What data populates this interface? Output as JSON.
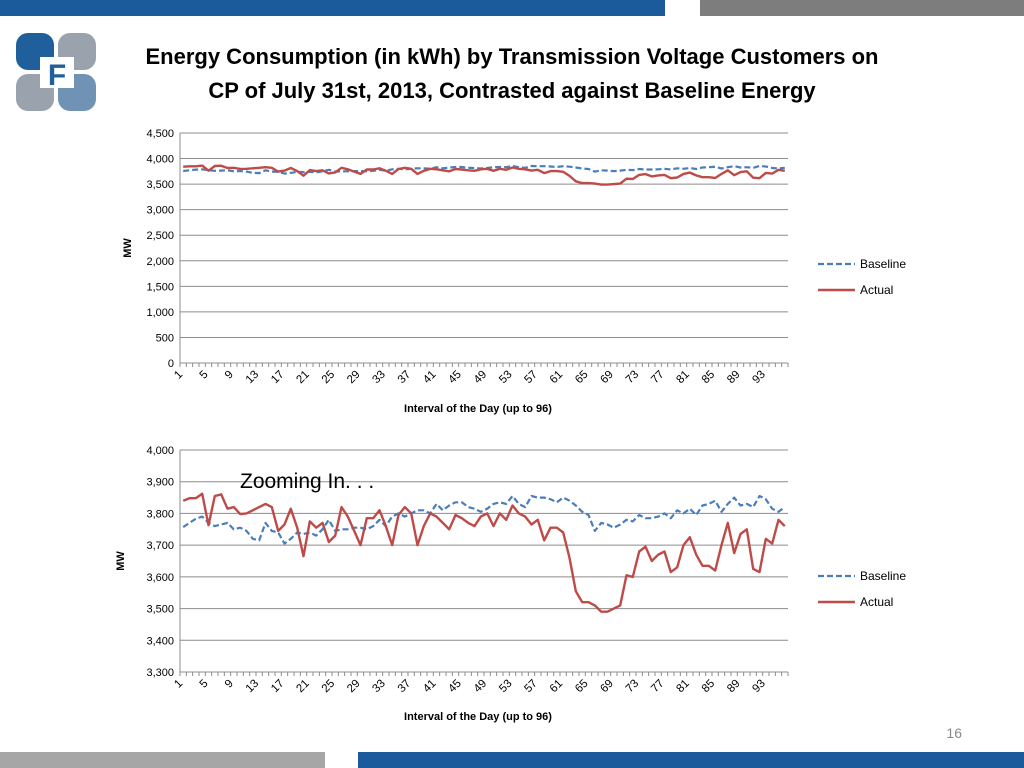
{
  "slide": {
    "title_line1": "Energy Consumption (in kWh) by Transmission Voltage Customers on",
    "title_line2": "CP of July 31st, 2013, Contrasted against Baseline Energy",
    "slide_number": "16",
    "logo_letter": "F"
  },
  "colors": {
    "baseline": "#4a7ebb",
    "actual": "#be4b48",
    "header_blue": "#1b5b9b",
    "header_gray": "#7d7d7d",
    "footer_gray": "#a6a6a6",
    "logo_blue": "#1f5f9b",
    "logo_gray": "#9aa3ad"
  },
  "chart_data": [
    {
      "type": "line",
      "title": "",
      "xlabel": "Interval of the Day (up to 96)",
      "ylabel": "MW",
      "ylim": [
        0,
        4500
      ],
      "yticks": [
        "0",
        "500",
        "1,000",
        "1,500",
        "2,000",
        "2,500",
        "3,000",
        "3,500",
        "4,000",
        "4,500"
      ],
      "ytick_values": [
        0,
        500,
        1000,
        1500,
        2000,
        2500,
        3000,
        3500,
        4000,
        4500
      ],
      "xticks": [
        "1",
        "5",
        "9",
        "13",
        "17",
        "21",
        "25",
        "29",
        "33",
        "37",
        "41",
        "45",
        "49",
        "53",
        "57",
        "61",
        "65",
        "69",
        "73",
        "77",
        "81",
        "85",
        "89",
        "93"
      ],
      "grid": true,
      "legend": "right",
      "x_first": 1,
      "x_last": 96,
      "series": [
        {
          "name": "Baseline",
          "style": "dashed",
          "values": [
            3757,
            3770,
            3783,
            3790,
            3770,
            3760,
            3765,
            3770,
            3750,
            3755,
            3745,
            3720,
            3715,
            3770,
            3745,
            3740,
            3705,
            3720,
            3740,
            3735,
            3740,
            3730,
            3750,
            3780,
            3745,
            3750,
            3750,
            3755,
            3755,
            3750,
            3760,
            3780,
            3760,
            3790,
            3800,
            3790,
            3800,
            3810,
            3810,
            3800,
            3830,
            3810,
            3825,
            3835,
            3835,
            3820,
            3815,
            3805,
            3815,
            3830,
            3835,
            3830,
            3855,
            3830,
            3820,
            3855,
            3850,
            3850,
            3845,
            3835,
            3850,
            3840,
            3825,
            3805,
            3795,
            3745,
            3770,
            3765,
            3755,
            3765,
            3780,
            3775,
            3795,
            3785,
            3785,
            3790,
            3800,
            3785,
            3810,
            3800,
            3815,
            3795,
            3825,
            3830,
            3840,
            3805,
            3830,
            3850,
            3825,
            3830,
            3820,
            3855,
            3845,
            3815,
            3805,
            3820
          ]
        },
        {
          "name": "Actual",
          "style": "solid",
          "values": [
            3840,
            3848,
            3848,
            3862,
            3763,
            3855,
            3860,
            3815,
            3820,
            3798,
            3800,
            3810,
            3820,
            3830,
            3820,
            3745,
            3765,
            3815,
            3755,
            3665,
            3775,
            3755,
            3770,
            3710,
            3730,
            3820,
            3790,
            3745,
            3700,
            3785,
            3785,
            3810,
            3760,
            3700,
            3795,
            3820,
            3800,
            3700,
            3760,
            3800,
            3790,
            3770,
            3750,
            3795,
            3785,
            3770,
            3760,
            3790,
            3800,
            3760,
            3800,
            3780,
            3825,
            3800,
            3790,
            3765,
            3780,
            3715,
            3755,
            3755,
            3740,
            3660,
            3555,
            3520,
            3520,
            3510,
            3490,
            3490,
            3500,
            3510,
            3605,
            3600,
            3680,
            3695,
            3650,
            3670,
            3680,
            3615,
            3630,
            3700,
            3725,
            3670,
            3635,
            3635,
            3620,
            3700,
            3770,
            3675,
            3735,
            3750,
            3625,
            3615,
            3720,
            3705,
            3780,
            3760
          ]
        }
      ]
    },
    {
      "type": "line",
      "title": "",
      "annotation": "Zooming In. . .",
      "xlabel": "Interval of the Day (up to 96)",
      "ylabel": "MW",
      "ylim": [
        3300,
        4000
      ],
      "yticks": [
        "3,300",
        "3,400",
        "3,500",
        "3,600",
        "3,700",
        "3,800",
        "3,900",
        "4,000"
      ],
      "ytick_values": [
        3300,
        3400,
        3500,
        3600,
        3700,
        3800,
        3900,
        4000
      ],
      "xticks": [
        "1",
        "5",
        "9",
        "13",
        "17",
        "21",
        "25",
        "29",
        "33",
        "37",
        "41",
        "45",
        "49",
        "53",
        "57",
        "61",
        "65",
        "69",
        "73",
        "77",
        "81",
        "85",
        "89",
        "93"
      ],
      "grid": true,
      "legend": "right",
      "x_first": 1,
      "x_last": 96,
      "series": [
        {
          "name": "Baseline",
          "style": "dashed",
          "values": [
            3757,
            3770,
            3783,
            3790,
            3770,
            3760,
            3765,
            3770,
            3750,
            3755,
            3745,
            3720,
            3715,
            3770,
            3745,
            3740,
            3705,
            3720,
            3740,
            3735,
            3740,
            3730,
            3750,
            3780,
            3745,
            3750,
            3750,
            3755,
            3755,
            3750,
            3760,
            3780,
            3760,
            3790,
            3800,
            3790,
            3800,
            3810,
            3810,
            3800,
            3830,
            3810,
            3825,
            3835,
            3835,
            3820,
            3815,
            3805,
            3815,
            3830,
            3835,
            3830,
            3855,
            3830,
            3820,
            3855,
            3850,
            3850,
            3845,
            3835,
            3850,
            3840,
            3825,
            3805,
            3795,
            3745,
            3770,
            3765,
            3755,
            3765,
            3780,
            3775,
            3795,
            3785,
            3785,
            3790,
            3800,
            3785,
            3810,
            3800,
            3815,
            3795,
            3825,
            3830,
            3840,
            3805,
            3830,
            3850,
            3825,
            3830,
            3820,
            3855,
            3845,
            3815,
            3805,
            3820
          ]
        },
        {
          "name": "Actual",
          "style": "solid",
          "values": [
            3840,
            3848,
            3848,
            3862,
            3763,
            3855,
            3860,
            3815,
            3820,
            3798,
            3800,
            3810,
            3820,
            3830,
            3820,
            3745,
            3765,
            3815,
            3755,
            3665,
            3775,
            3755,
            3770,
            3710,
            3730,
            3820,
            3790,
            3745,
            3700,
            3785,
            3785,
            3810,
            3760,
            3700,
            3795,
            3820,
            3800,
            3700,
            3760,
            3800,
            3790,
            3770,
            3750,
            3795,
            3785,
            3770,
            3760,
            3790,
            3800,
            3760,
            3800,
            3780,
            3825,
            3800,
            3790,
            3765,
            3780,
            3715,
            3755,
            3755,
            3740,
            3660,
            3555,
            3520,
            3520,
            3510,
            3490,
            3490,
            3500,
            3510,
            3605,
            3600,
            3680,
            3695,
            3650,
            3670,
            3680,
            3615,
            3630,
            3700,
            3725,
            3670,
            3635,
            3635,
            3620,
            3700,
            3770,
            3675,
            3735,
            3750,
            3625,
            3615,
            3720,
            3705,
            3780,
            3760
          ]
        }
      ]
    }
  ]
}
